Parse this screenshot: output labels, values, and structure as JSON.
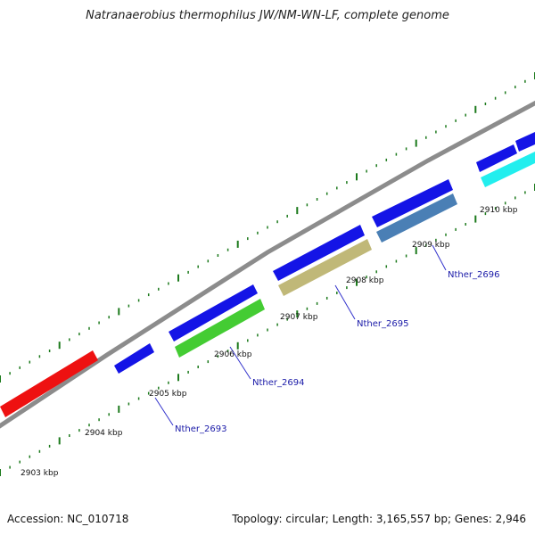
{
  "title": "Natranaerobius thermophilus JW/NM-WN-LF, complete genome",
  "footer": {
    "accession": "Accession: NC_010718",
    "stats": "Topology: circular; Length: 3,165,557 bp; Genes: 2,946"
  },
  "kbp_labels": [
    "2903 kbp",
    "2904 kbp",
    "2905 kbp",
    "2906 kbp",
    "2907 kbp",
    "2908 kbp",
    "2909 kbp",
    "2910 kbp"
  ],
  "gene_labels": [
    "Nther_2693",
    "Nther_2694",
    "Nther_2695",
    "Nther_2696"
  ],
  "colors": {
    "backbone": "#8c8c8c",
    "tick": "#1c7a1c",
    "gene_blue": "#1414e6",
    "gene_red": "#ee1111",
    "gene_green": "#44cc33",
    "gene_khaki": "#c0b878",
    "gene_steelblue": "#4a7fb5",
    "gene_cyan": "#22eeee",
    "label_line": "#3333cc"
  }
}
